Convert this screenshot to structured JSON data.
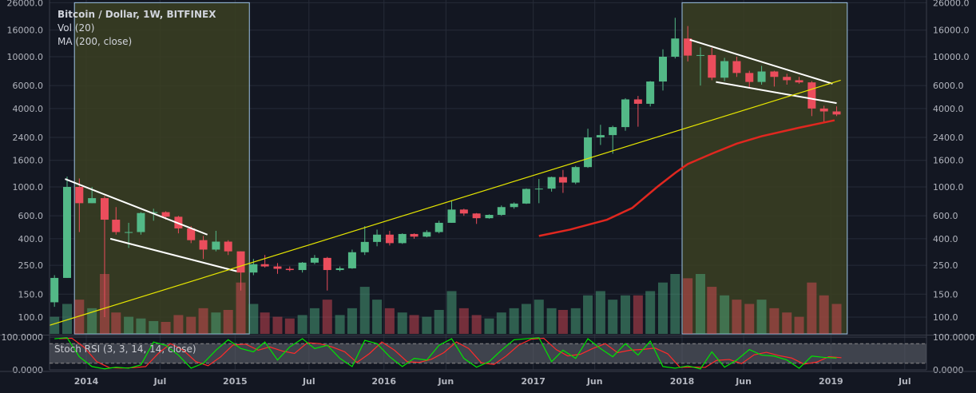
{
  "legend": {
    "symbol": "Bitcoin / Dollar, 1W, BITFINEX",
    "volume": "Vol (20)",
    "ma": "MA (200, close)"
  },
  "rsi_label": "Stoch RSI (3, 3, 14, 14, close)",
  "colors": {
    "background": "#131722",
    "up": "#53b987",
    "down": "#eb4d5c",
    "ma": "#e0271f",
    "trend_white": "#ffffff",
    "trend_yellow": "#e6e600",
    "shade": "#3b3f22",
    "shade_border": "#9ec3e6",
    "stoch_k": "#00e600",
    "stoch_d": "#ff2a2a"
  },
  "chart_data": [
    {
      "type": "candlestick",
      "scale": "log",
      "price_ticks": [
        "26000.0",
        "16000.0",
        "10000.0",
        "6000.0",
        "4000.0",
        "2400.0",
        "1600.0",
        "1000.0",
        "600.0",
        "400.0",
        "250.0",
        "150.0",
        "100.0"
      ],
      "price_tick_values": [
        26000,
        16000,
        10000,
        6000,
        4000,
        2400,
        1600,
        1000,
        600,
        400,
        250,
        150,
        100
      ],
      "time_ticks": [
        {
          "label": "2014",
          "date": "2014-01-01"
        },
        {
          "label": "Jul",
          "date": "2014-07-01"
        },
        {
          "label": "2015",
          "date": "2015-01-01"
        },
        {
          "label": "Jul",
          "date": "2015-07-01"
        },
        {
          "label": "2016",
          "date": "2016-01-01"
        },
        {
          "label": "Jun",
          "date": "2016-06-01"
        },
        {
          "label": "2017",
          "date": "2017-01-01"
        },
        {
          "label": "Jun",
          "date": "2017-06-01"
        },
        {
          "label": "2018",
          "date": "2018-01-01"
        },
        {
          "label": "Jun",
          "date": "2018-06-01"
        },
        {
          "label": "2019",
          "date": "2019-01-01"
        },
        {
          "label": "Jul",
          "date": "2019-07-01"
        }
      ],
      "start_month": "2013-10",
      "ohlc": [
        [
          130,
          210,
          120,
          200
        ],
        [
          200,
          1200,
          200,
          1000
        ],
        [
          1000,
          1160,
          450,
          750
        ],
        [
          750,
          1000,
          750,
          820
        ],
        [
          820,
          850,
          100,
          560
        ],
        [
          560,
          700,
          430,
          450
        ],
        [
          450,
          530,
          340,
          450
        ],
        [
          450,
          640,
          430,
          630
        ],
        [
          630,
          680,
          550,
          640
        ],
        [
          640,
          650,
          560,
          590
        ],
        [
          590,
          600,
          440,
          480
        ],
        [
          480,
          500,
          370,
          390
        ],
        [
          390,
          420,
          280,
          330
        ],
        [
          330,
          460,
          320,
          380
        ],
        [
          380,
          390,
          300,
          320
        ],
        [
          320,
          320,
          160,
          220
        ],
        [
          220,
          280,
          210,
          255
        ],
        [
          255,
          300,
          240,
          245
        ],
        [
          245,
          260,
          215,
          235
        ],
        [
          235,
          245,
          225,
          230
        ],
        [
          230,
          265,
          220,
          262
        ],
        [
          262,
          300,
          255,
          285
        ],
        [
          285,
          290,
          160,
          230
        ],
        [
          230,
          245,
          225,
          237
        ],
        [
          237,
          330,
          235,
          315
        ],
        [
          315,
          500,
          300,
          378
        ],
        [
          378,
          470,
          350,
          430
        ],
        [
          430,
          460,
          355,
          370
        ],
        [
          370,
          440,
          365,
          435
        ],
        [
          435,
          440,
          400,
          415
        ],
        [
          415,
          465,
          410,
          450
        ],
        [
          450,
          550,
          440,
          530
        ],
        [
          530,
          780,
          530,
          670
        ],
        [
          670,
          680,
          600,
          625
        ],
        [
          625,
          630,
          520,
          575
        ],
        [
          575,
          615,
          570,
          610
        ],
        [
          610,
          720,
          600,
          700
        ],
        [
          700,
          760,
          680,
          745
        ],
        [
          745,
          975,
          740,
          965
        ],
        [
          965,
          1150,
          750,
          970
        ],
        [
          970,
          1200,
          920,
          1190
        ],
        [
          1190,
          1350,
          900,
          1080
        ],
        [
          1080,
          1450,
          1050,
          1420
        ],
        [
          1420,
          2800,
          1400,
          2400
        ],
        [
          2400,
          3000,
          2100,
          2500
        ],
        [
          2500,
          2950,
          1800,
          2880
        ],
        [
          2880,
          4800,
          2700,
          4700
        ],
        [
          4700,
          5000,
          2900,
          4350
        ],
        [
          4350,
          6500,
          4150,
          6450
        ],
        [
          6450,
          11400,
          5500,
          10000
        ],
        [
          10000,
          19900,
          9700,
          13800
        ],
        [
          13800,
          17200,
          9200,
          10200
        ],
        [
          10200,
          11800,
          6000,
          10300
        ],
        [
          10300,
          11700,
          6600,
          6900
        ],
        [
          6900,
          9800,
          6500,
          9250
        ],
        [
          9250,
          10000,
          7000,
          7500
        ],
        [
          7500,
          7800,
          5800,
          6400
        ],
        [
          6400,
          8500,
          6100,
          7700
        ],
        [
          7700,
          7800,
          5900,
          7000
        ],
        [
          7000,
          7400,
          6100,
          6600
        ],
        [
          6600,
          7000,
          6200,
          6350
        ],
        [
          6350,
          6500,
          3500,
          4000
        ],
        [
          4000,
          4200,
          3100,
          3800
        ],
        [
          3800,
          4150,
          3500,
          3600
        ]
      ],
      "volume_relative": [
        20,
        35,
        40,
        30,
        70,
        25,
        20,
        18,
        15,
        14,
        22,
        20,
        30,
        25,
        28,
        60,
        35,
        25,
        20,
        18,
        22,
        30,
        40,
        22,
        30,
        55,
        40,
        30,
        25,
        22,
        20,
        28,
        50,
        30,
        22,
        18,
        25,
        30,
        35,
        40,
        30,
        28,
        30,
        45,
        50,
        40,
        45,
        45,
        50,
        60,
        70,
        65,
        70,
        55,
        45,
        40,
        35,
        40,
        30,
        25,
        20,
        60,
        45,
        35
      ],
      "ma200": [
        [
          "2017-01-15",
          420
        ],
        [
          "2017-04-01",
          470
        ],
        [
          "2017-07-01",
          560
        ],
        [
          "2017-09-01",
          690
        ],
        [
          "2017-11-01",
          1000
        ],
        [
          "2017-12-15",
          1280
        ],
        [
          "2018-01-15",
          1500
        ],
        [
          "2018-03-15",
          1800
        ],
        [
          "2018-05-15",
          2150
        ],
        [
          "2018-07-15",
          2450
        ],
        [
          "2018-10-15",
          2850
        ],
        [
          "2019-01-10",
          3250
        ]
      ],
      "trendlines": [
        {
          "color": "white",
          "from": [
            "2013-11-10",
            1150
          ],
          "to": [
            "2014-10-25",
            430
          ]
        },
        {
          "color": "white",
          "from": [
            "2014-03-01",
            400
          ],
          "to": [
            "2015-01-05",
            225
          ]
        },
        {
          "color": "white",
          "from": [
            "2018-01-20",
            13500
          ],
          "to": [
            "2019-01-05",
            6200
          ]
        },
        {
          "color": "white",
          "from": [
            "2018-03-25",
            6400
          ],
          "to": [
            "2019-01-15",
            4400
          ]
        },
        {
          "color": "yellow",
          "from": [
            "2013-09-25",
            85
          ],
          "to": [
            "2019-01-25",
            6600
          ]
        }
      ],
      "shaded_ranges": [
        [
          "2013-12-03",
          "2015-02-05"
        ],
        [
          "2018-01-01",
          "2019-02-10"
        ]
      ]
    },
    {
      "type": "line",
      "title": "Stoch RSI (3, 3, 14, 14, close)",
      "ylim": [
        0,
        100
      ],
      "y_ticks": [
        "100.0000",
        "0.0000"
      ],
      "bands": [
        80,
        20
      ],
      "k": [
        95,
        98,
        40,
        10,
        3,
        8,
        5,
        15,
        85,
        75,
        45,
        5,
        20,
        60,
        92,
        65,
        55,
        85,
        30,
        70,
        95,
        65,
        75,
        35,
        10,
        90,
        80,
        40,
        10,
        35,
        30,
        75,
        95,
        35,
        8,
        25,
        60,
        92,
        95,
        98,
        25,
        60,
        35,
        95,
        65,
        40,
        80,
        45,
        88,
        10,
        5,
        12,
        3,
        55,
        8,
        30,
        62,
        45,
        42,
        30,
        5,
        42,
        38,
        36
      ],
      "legend": "none"
    }
  ]
}
